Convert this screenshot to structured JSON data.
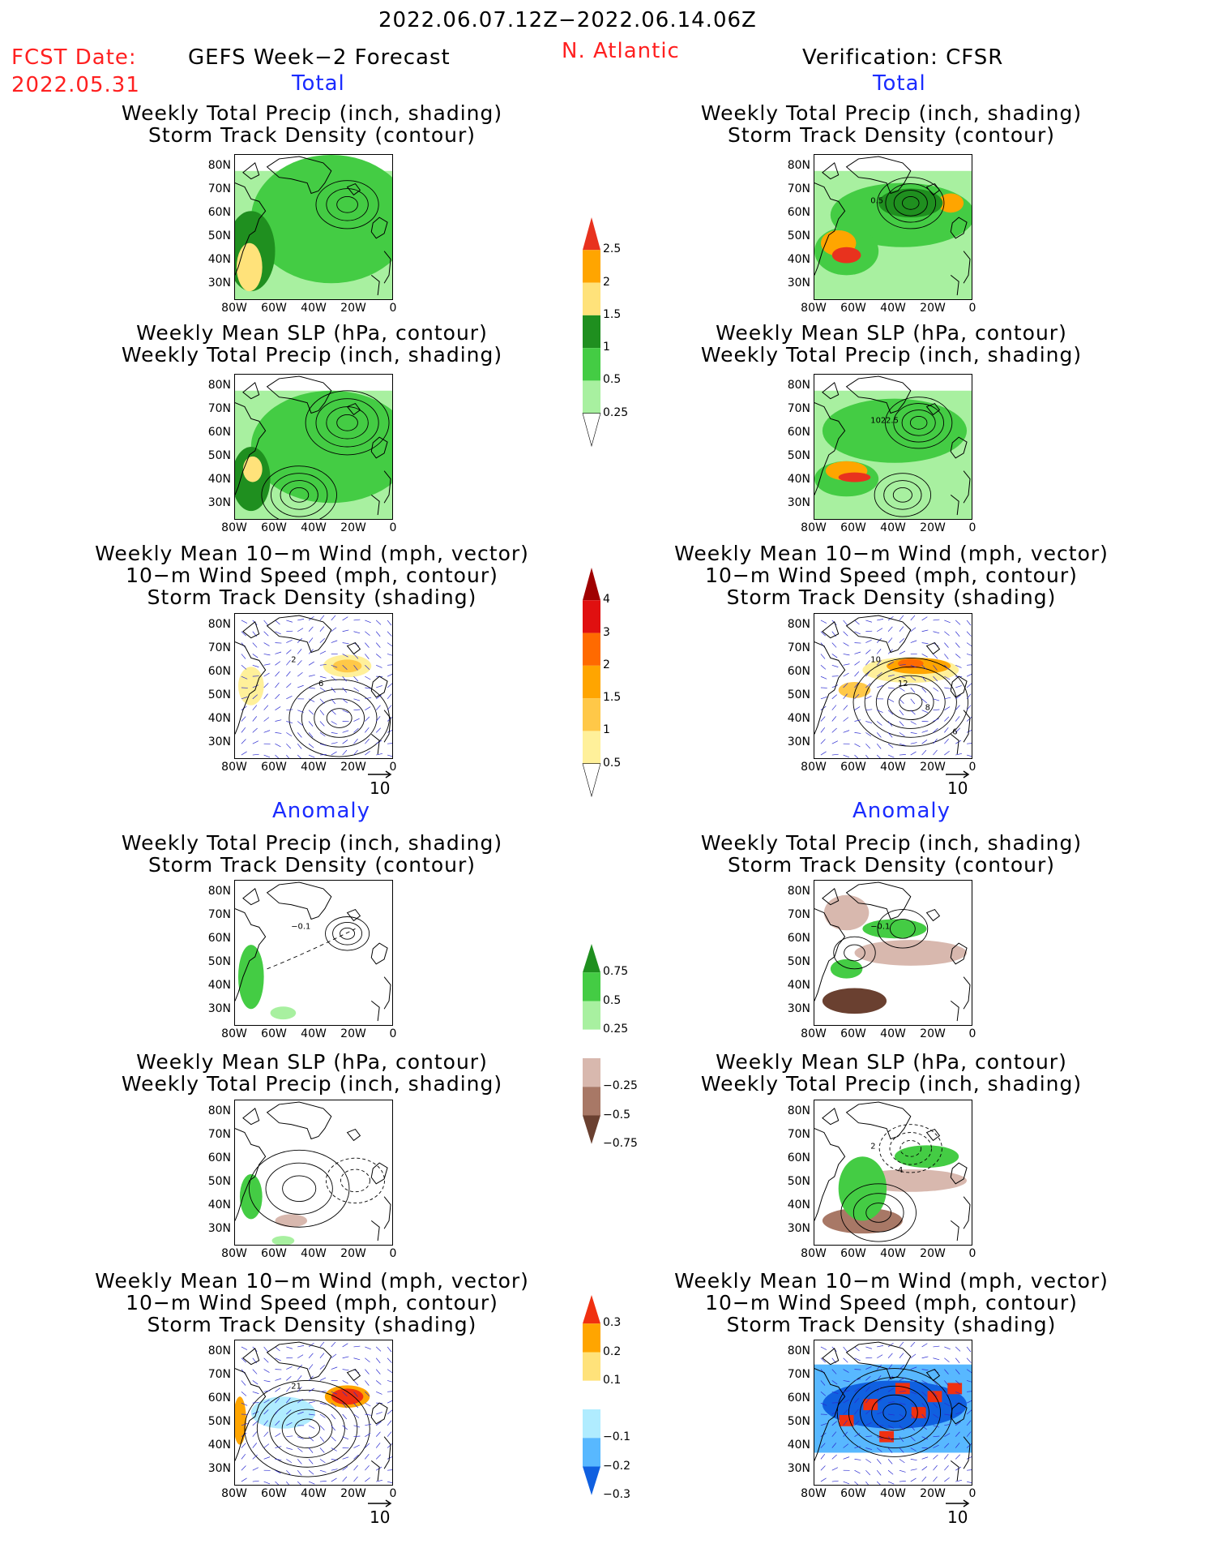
{
  "header": {
    "period": "2022.06.07.12Z−2022.06.14.06Z",
    "fcst_label": "FCST Date:",
    "fcst_date": "2022.05.31",
    "forecast_title": "GEFS Week−2 Forecast",
    "region": "N. Atlantic",
    "verification": "Verification: CFSR"
  },
  "sections": {
    "total": "Total",
    "anomaly": "Anomaly"
  },
  "panel_titles": {
    "precip_track": [
      "Weekly Total Precip (inch, shading)",
      "Storm Track Density (contour)"
    ],
    "slp_precip": [
      "Weekly Mean SLP (hPa, contour)",
      "Weekly Total Precip (inch, shading)"
    ],
    "wind_track": [
      "Weekly Mean 10−m Wind (mph, vector)",
      "10−m Wind Speed (mph, contour)",
      "Storm Track Density (shading)"
    ]
  },
  "axes": {
    "lat_ticks": [
      "80N",
      "70N",
      "60N",
      "50N",
      "40N",
      "30N"
    ],
    "lon_ticks": [
      "80W",
      "60W",
      "40W",
      "20W",
      "0"
    ]
  },
  "vector_reference": "10",
  "contour_labels": {
    "obs_precip": "0.5",
    "obs_slp": "1022.5",
    "fcst_wind": [
      "2",
      "6"
    ],
    "obs_wind": [
      "10",
      "12",
      "8",
      "6"
    ],
    "fcst_anom_precip": "−0.1",
    "obs_anom_precip": "−0.1",
    "obs_anom_slp": [
      "2",
      "4"
    ],
    "fcst_anom_wind": "21"
  },
  "colorbars": {
    "precip_total": {
      "labels": [
        "2.5",
        "2",
        "1.5",
        "1",
        "0.5",
        "0.25"
      ],
      "colors": [
        "#e8321e",
        "#ffa500",
        "#ffe27a",
        "#1f8f1f",
        "#44cc44",
        "#a8f0a0"
      ]
    },
    "track_total": {
      "labels": [
        "4",
        "3",
        "2",
        "1.5",
        "1",
        "0.5"
      ],
      "colors": [
        "#a00000",
        "#e01010",
        "#ff6a00",
        "#ffa500",
        "#ffc848",
        "#fff09a"
      ]
    },
    "precip_anom": {
      "labels": [
        "0.75",
        "0.5",
        "0.25",
        "−0.25",
        "−0.5",
        "−0.75"
      ],
      "colors": [
        "#1f8f1f",
        "#44cc44",
        "#a8f0a0",
        "#ffffff",
        "#d8b8ae",
        "#a87866",
        "#6a4030"
      ]
    },
    "track_anom": {
      "labels": [
        "0.3",
        "0.2",
        "0.1",
        "−0.1",
        "−0.2",
        "−0.3"
      ],
      "colors": [
        "#f03010",
        "#ffa500",
        "#ffe27a",
        "#ffffff",
        "#b0ecff",
        "#58b8ff",
        "#1060e0"
      ]
    }
  },
  "colors": {
    "title_red": "#ff2020",
    "section_blue": "#1a2bff",
    "vector_blue": "#2a2ad0"
  }
}
